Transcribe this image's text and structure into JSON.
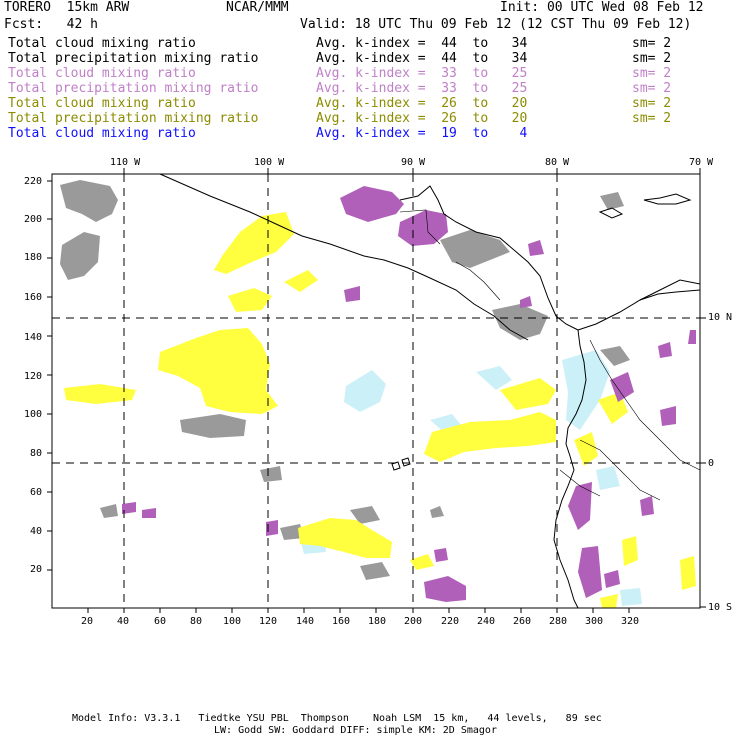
{
  "header": {
    "model": "TORERO  15km ARW",
    "org": "NCAR/MMM",
    "init": "Init: 00 UTC Wed 08 Feb 12",
    "fcst": "Fcst:   42 h",
    "valid": "Valid: 18 UTC Thu 09 Feb 12 (12 CST Thu 09 Feb 12)"
  },
  "fields": [
    {
      "name": "Total cloud mixing ratio",
      "kidx": "Avg. k-index =  44  to   34",
      "sm": "sm= 2",
      "color": "#000000"
    },
    {
      "name": "Total precipitation mixing ratio",
      "kidx": "Avg. k-index =  44  to   34",
      "sm": "sm= 2",
      "color": "#000000"
    },
    {
      "name": "Total cloud mixing ratio",
      "kidx": "Avg. k-index =  33  to   25",
      "sm": "sm= 2",
      "color": "#c080c8"
    },
    {
      "name": "Total precipitation mixing ratio",
      "kidx": "Avg. k-index =  33  to   25",
      "sm": "sm= 2",
      "color": "#c080c8"
    },
    {
      "name": "Total cloud mixing ratio",
      "kidx": "Avg. k-index =  26  to   20",
      "sm": "sm= 2",
      "color": "#8c8c00"
    },
    {
      "name": "Total precipitation mixing ratio",
      "kidx": "Avg. k-index =  26  to   20",
      "sm": "sm= 2",
      "color": "#8c8c00"
    },
    {
      "name": "Total cloud mixing ratio",
      "kidx": "Avg. k-index =  19  to    4",
      "sm": "",
      "color": "#1010ff"
    }
  ],
  "map": {
    "lon_labels": [
      "110 W",
      "100 W",
      "90 W",
      "80 W",
      "70 W"
    ],
    "lat_labels": [
      "10 N",
      "0",
      "10 S"
    ],
    "x_ticks": [
      "20",
      "40",
      "60",
      "80",
      "100",
      "120",
      "140",
      "160",
      "180",
      "200",
      "220",
      "240",
      "260",
      "280",
      "300",
      "320"
    ],
    "y_ticks": [
      "220",
      "200",
      "180",
      "160",
      "140",
      "120",
      "100",
      "80",
      "60",
      "40",
      "20"
    ],
    "layer_colors": {
      "grey": "#999999",
      "purple": "#b060b8",
      "yellow": "#ffff40",
      "cyan": "#ccf0f8"
    }
  },
  "footer": {
    "line1": "Model Info: V3.3.1   Tiedtke YSU PBL  Thompson    Noah LSM  15 km,   44 levels,   89 sec",
    "line2": "LW: Godd SW: Goddard DIFF: simple KM: 2D Smagor"
  }
}
